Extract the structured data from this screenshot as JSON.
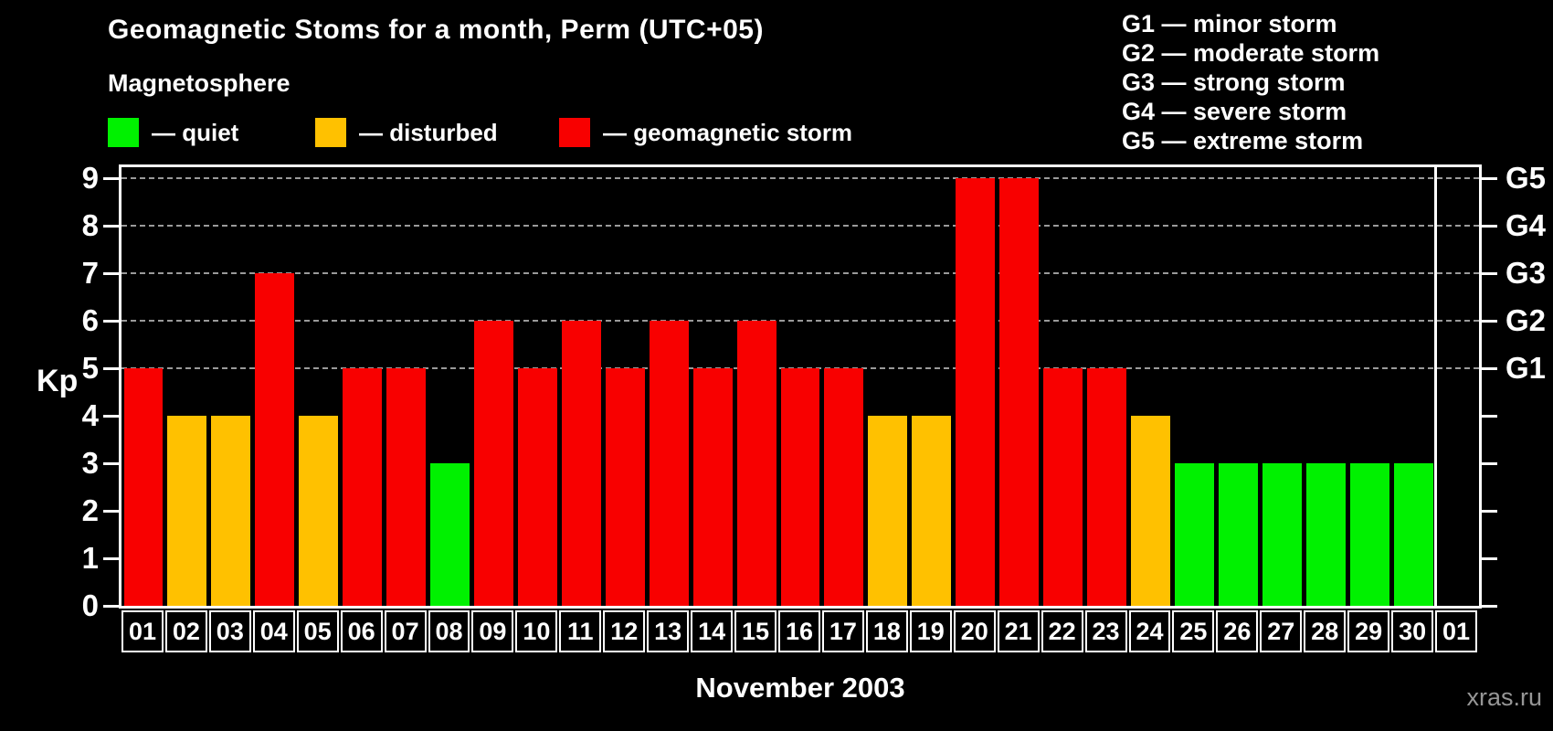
{
  "title": "Geomagnetic Stoms for a month, Perm (UTC+05)",
  "legend": {
    "heading": "Magnetosphere",
    "items": [
      {
        "name": "quiet",
        "label": "— quiet",
        "color": "#00f100",
        "x": 118
      },
      {
        "name": "disturbed",
        "label": "— disturbed",
        "color": "#ffc100",
        "x": 345
      },
      {
        "name": "geomagnetic-storm",
        "label": "— geomagnetic storm",
        "color": "#f80000",
        "x": 612
      }
    ]
  },
  "g_scale_legend": [
    "G1 — minor storm",
    "G2 — moderate storm",
    "G3 — strong storm",
    "G4 — severe storm",
    "G5 — extreme storm"
  ],
  "axes": {
    "y_label": "Kp",
    "y_ticks": [
      0,
      1,
      2,
      3,
      4,
      5,
      6,
      7,
      8,
      9
    ],
    "right_labels": {
      "5": "G1",
      "6": "G2",
      "7": "G3",
      "8": "G4",
      "9": "G5"
    },
    "x_title": "November 2003"
  },
  "watermark": "xras.ru",
  "chart_data": {
    "type": "bar",
    "title": "Geomagnetic Stoms for a month, Perm (UTC+05)",
    "xlabel": "November 2003",
    "ylabel": "Kp",
    "ylim": [
      0,
      9
    ],
    "gridlines_at": [
      5,
      6,
      7,
      8,
      9
    ],
    "legend_position": "top",
    "categories": [
      "01",
      "02",
      "03",
      "04",
      "05",
      "06",
      "07",
      "08",
      "09",
      "10",
      "11",
      "12",
      "13",
      "14",
      "15",
      "16",
      "17",
      "18",
      "19",
      "20",
      "21",
      "22",
      "23",
      "24",
      "25",
      "26",
      "27",
      "28",
      "29",
      "30",
      "01"
    ],
    "values": [
      5,
      4,
      4,
      7,
      4,
      5,
      5,
      3,
      6,
      5,
      6,
      5,
      6,
      5,
      6,
      5,
      5,
      4,
      4,
      9,
      9,
      5,
      5,
      4,
      3,
      3,
      3,
      3,
      3,
      3,
      null
    ],
    "statuses": [
      "storm",
      "disturbed",
      "disturbed",
      "storm",
      "disturbed",
      "storm",
      "storm",
      "quiet",
      "storm",
      "storm",
      "storm",
      "storm",
      "storm",
      "storm",
      "storm",
      "storm",
      "storm",
      "disturbed",
      "disturbed",
      "storm",
      "storm",
      "storm",
      "storm",
      "disturbed",
      "quiet",
      "quiet",
      "quiet",
      "quiet",
      "quiet",
      "quiet",
      null
    ],
    "colors": {
      "quiet": "#00f100",
      "disturbed": "#ffc100",
      "storm": "#f80000"
    },
    "g_thresholds": {
      "G1": 5,
      "G2": 6,
      "G3": 7,
      "G4": 8,
      "G5": 9
    }
  }
}
